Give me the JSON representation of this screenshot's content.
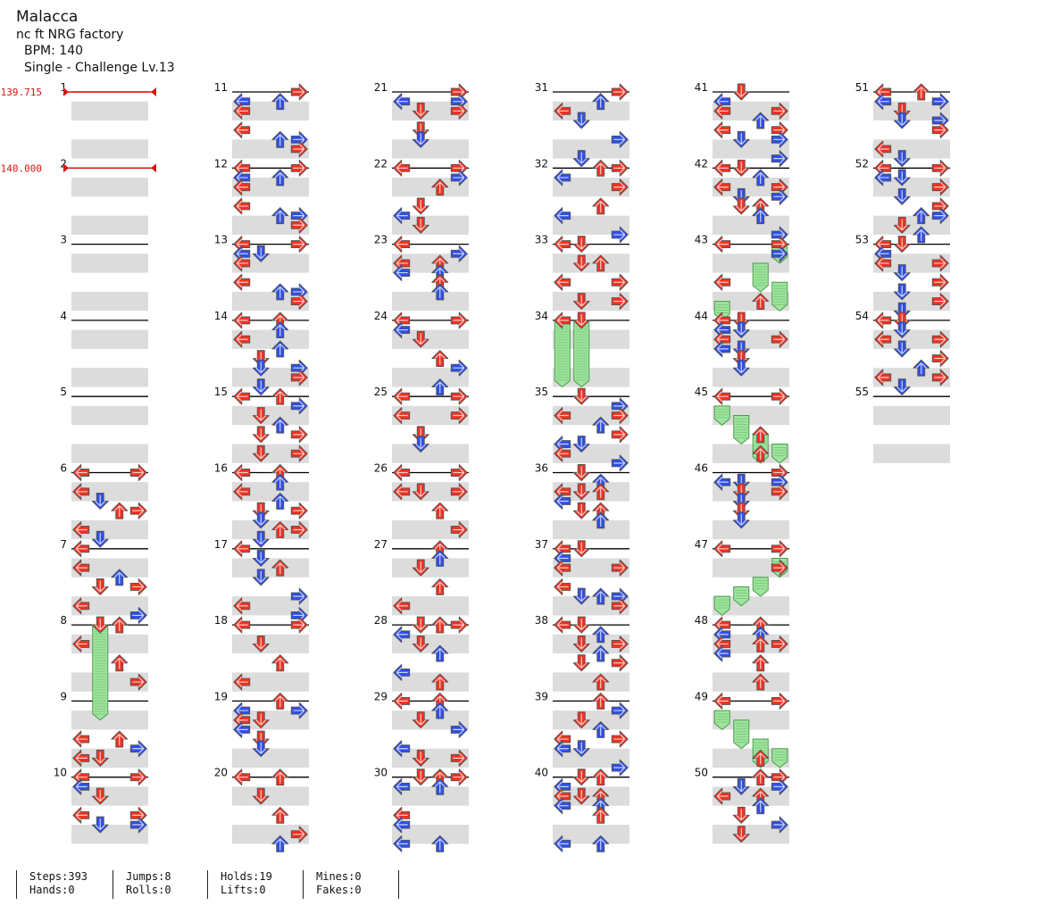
{
  "song": {
    "title": "Malacca",
    "artist": "nc ft NRG factory",
    "bpm_label": "BPM: 140",
    "difficulty_label": "Single - Challenge Lv.13"
  },
  "bpm_changes": [
    {
      "measure": 1,
      "label": "139.715"
    },
    {
      "measure": 2,
      "label": "140.000"
    }
  ],
  "colors": {
    "red": "#ee3322",
    "blue": "#2f4fe6",
    "yellow": "#f0e22a",
    "hold": "#9ee49e",
    "band": "#dcdcdc",
    "bpm_line": "#dd1111"
  },
  "stats": [
    [
      "Steps:393",
      "Hands:0"
    ],
    [
      "Jumps:8",
      "Rolls:0"
    ],
    [
      "Holds:19",
      "Lifts:0"
    ],
    [
      "Mines:0",
      "Fakes:0"
    ]
  ],
  "measure_labels": [
    "1",
    "2",
    "3",
    "4",
    "5",
    "6",
    "7",
    "8",
    "9",
    "10",
    "11",
    "12",
    "13",
    "14",
    "15",
    "16",
    "17",
    "18",
    "19",
    "20",
    "21",
    "22",
    "23",
    "24",
    "25",
    "26",
    "27",
    "28",
    "29",
    "30",
    "31",
    "32",
    "33",
    "34",
    "35",
    "36",
    "37",
    "38",
    "39",
    "40",
    "41",
    "42",
    "43",
    "44",
    "45",
    "46",
    "47",
    "48",
    "49",
    "50",
    "51",
    "52",
    "53",
    "54",
    "55"
  ],
  "notes": [
    {
      "m": 6.0,
      "c": 0
    },
    {
      "m": 6.0,
      "c": 3
    },
    {
      "m": 6.25,
      "c": 0
    },
    {
      "m": 6.375,
      "c": 1
    },
    {
      "m": 6.5,
      "c": 2
    },
    {
      "m": 6.5,
      "c": 3
    },
    {
      "m": 6.75,
      "c": 0
    },
    {
      "m": 6.875,
      "c": 1
    },
    {
      "m": 7.0,
      "c": 0
    },
    {
      "m": 7.25,
      "c": 0
    },
    {
      "m": 7.375,
      "c": 2
    },
    {
      "m": 7.5,
      "c": 1
    },
    {
      "m": 7.5,
      "c": 3
    },
    {
      "m": 7.75,
      "c": 0
    },
    {
      "m": 7.875,
      "c": 3
    },
    {
      "m": 8.0,
      "c": 1
    },
    {
      "m": 8.0,
      "c": 2
    },
    {
      "m": 8.25,
      "c": 0
    },
    {
      "m": 8.5,
      "c": 2
    },
    {
      "m": 8.75,
      "c": 3
    },
    {
      "m": 9.5,
      "c": 0
    },
    {
      "m": 9.5,
      "c": 2
    },
    {
      "m": 9.625,
      "c": 3
    },
    {
      "m": 9.75,
      "c": 0
    },
    {
      "m": 9.75,
      "c": 1
    },
    {
      "m": 10.0,
      "c": 0
    },
    {
      "m": 10.0,
      "c": 3
    },
    {
      "m": 10.125,
      "c": 0
    },
    {
      "m": 10.25,
      "c": 1
    },
    {
      "m": 10.5,
      "c": 0
    },
    {
      "m": 10.5,
      "c": 3
    },
    {
      "m": 10.625,
      "c": 1
    },
    {
      "m": 10.625,
      "c": 3
    },
    {
      "m": 11.0,
      "c": 3
    },
    {
      "m": 11.125,
      "c": 0
    },
    {
      "m": 11.125,
      "c": 2
    },
    {
      "m": 11.25,
      "c": 0
    },
    {
      "m": 11.5,
      "c": 0
    },
    {
      "m": 11.625,
      "c": 2
    },
    {
      "m": 11.625,
      "c": 3
    },
    {
      "m": 11.75,
      "c": 3
    },
    {
      "m": 12.0,
      "c": 0
    },
    {
      "m": 12.0,
      "c": 3
    },
    {
      "m": 12.125,
      "c": 0
    },
    {
      "m": 12.125,
      "c": 2
    },
    {
      "m": 12.25,
      "c": 0
    },
    {
      "m": 12.5,
      "c": 0
    },
    {
      "m": 12.625,
      "c": 2
    },
    {
      "m": 12.625,
      "c": 3
    },
    {
      "m": 12.75,
      "c": 3
    },
    {
      "m": 13.0,
      "c": 0
    },
    {
      "m": 13.0,
      "c": 3
    },
    {
      "m": 13.125,
      "c": 0
    },
    {
      "m": 13.125,
      "c": 1
    },
    {
      "m": 13.25,
      "c": 0
    },
    {
      "m": 13.5,
      "c": 0
    },
    {
      "m": 13.625,
      "c": 2
    },
    {
      "m": 13.625,
      "c": 3
    },
    {
      "m": 13.75,
      "c": 3
    },
    {
      "m": 14.0,
      "c": 0
    },
    {
      "m": 14.0,
      "c": 2
    },
    {
      "m": 14.125,
      "c": 2
    },
    {
      "m": 14.25,
      "c": 0
    },
    {
      "m": 14.375,
      "c": 2
    },
    {
      "m": 14.5,
      "c": 1
    },
    {
      "m": 14.625,
      "c": 1
    },
    {
      "m": 14.625,
      "c": 3
    },
    {
      "m": 14.75,
      "c": 3
    },
    {
      "m": 14.875,
      "c": 1
    },
    {
      "m": 15.0,
      "c": 0
    },
    {
      "m": 15.0,
      "c": 2
    },
    {
      "m": 15.125,
      "c": 3
    },
    {
      "m": 15.25,
      "c": 1
    },
    {
      "m": 15.375,
      "c": 2
    },
    {
      "m": 15.5,
      "c": 1
    },
    {
      "m": 15.5,
      "c": 3
    },
    {
      "m": 15.75,
      "c": 1
    },
    {
      "m": 15.75,
      "c": 3
    },
    {
      "m": 16.0,
      "c": 0
    },
    {
      "m": 16.0,
      "c": 2
    },
    {
      "m": 16.125,
      "c": 2
    },
    {
      "m": 16.25,
      "c": 0
    },
    {
      "m": 16.375,
      "c": 2
    },
    {
      "m": 16.5,
      "c": 1
    },
    {
      "m": 16.5,
      "c": 3
    },
    {
      "m": 16.625,
      "c": 1
    },
    {
      "m": 16.75,
      "c": 2
    },
    {
      "m": 16.75,
      "c": 3
    },
    {
      "m": 16.875,
      "c": 1
    },
    {
      "m": 17.0,
      "c": 0
    },
    {
      "m": 17.125,
      "c": 1
    },
    {
      "m": 17.25,
      "c": 2
    },
    {
      "m": 17.375,
      "c": 1
    },
    {
      "m": 17.625,
      "c": 3
    },
    {
      "m": 17.75,
      "c": 0
    },
    {
      "m": 17.875,
      "c": 3
    },
    {
      "m": 18.0,
      "c": 0
    },
    {
      "m": 18.0,
      "c": 3
    },
    {
      "m": 18.25,
      "c": 1
    },
    {
      "m": 18.5,
      "c": 2
    },
    {
      "m": 18.75,
      "c": 0
    },
    {
      "m": 19.0,
      "c": 2
    },
    {
      "m": 19.125,
      "c": 0
    },
    {
      "m": 19.125,
      "c": 3
    },
    {
      "m": 19.25,
      "c": 0
    },
    {
      "m": 19.25,
      "c": 1
    },
    {
      "m": 19.375,
      "c": 0
    },
    {
      "m": 19.5,
      "c": 1
    },
    {
      "m": 19.625,
      "c": 1
    },
    {
      "m": 20.0,
      "c": 0
    },
    {
      "m": 20.0,
      "c": 2
    },
    {
      "m": 20.25,
      "c": 1
    },
    {
      "m": 20.5,
      "c": 2
    },
    {
      "m": 20.75,
      "c": 3
    },
    {
      "m": 20.875,
      "c": 2
    },
    {
      "m": 21.0,
      "c": 3
    },
    {
      "m": 21.125,
      "c": 0
    },
    {
      "m": 21.125,
      "c": 3
    },
    {
      "m": 21.25,
      "c": 1
    },
    {
      "m": 21.25,
      "c": 3
    },
    {
      "m": 21.5,
      "c": 1
    },
    {
      "m": 21.625,
      "c": 1
    },
    {
      "m": 22.0,
      "c": 0
    },
    {
      "m": 22.0,
      "c": 3
    },
    {
      "m": 22.125,
      "c": 3
    },
    {
      "m": 22.25,
      "c": 2
    },
    {
      "m": 22.5,
      "c": 1
    },
    {
      "m": 22.625,
      "c": 0
    },
    {
      "m": 22.75,
      "c": 1
    },
    {
      "m": 23.0,
      "c": 0
    },
    {
      "m": 23.125,
      "c": 3
    },
    {
      "m": 23.25,
      "c": 0
    },
    {
      "m": 23.25,
      "c": 2
    },
    {
      "m": 23.375,
      "c": 0
    },
    {
      "m": 23.375,
      "c": 2
    },
    {
      "m": 23.5,
      "c": 2
    },
    {
      "m": 23.625,
      "c": 2
    },
    {
      "m": 24.0,
      "c": 0
    },
    {
      "m": 24.0,
      "c": 3
    },
    {
      "m": 24.125,
      "c": 0
    },
    {
      "m": 24.25,
      "c": 1
    },
    {
      "m": 24.5,
      "c": 2
    },
    {
      "m": 24.625,
      "c": 3
    },
    {
      "m": 24.875,
      "c": 2
    },
    {
      "m": 25.0,
      "c": 0
    },
    {
      "m": 25.0,
      "c": 3
    },
    {
      "m": 25.25,
      "c": 0
    },
    {
      "m": 25.25,
      "c": 3
    },
    {
      "m": 25.5,
      "c": 1
    },
    {
      "m": 25.625,
      "c": 1
    },
    {
      "m": 26.0,
      "c": 0
    },
    {
      "m": 26.0,
      "c": 3
    },
    {
      "m": 26.25,
      "c": 0
    },
    {
      "m": 26.25,
      "c": 1
    },
    {
      "m": 26.25,
      "c": 3
    },
    {
      "m": 26.5,
      "c": 2
    },
    {
      "m": 26.75,
      "c": 3
    },
    {
      "m": 27.0,
      "c": 2
    },
    {
      "m": 27.125,
      "c": 2
    },
    {
      "m": 27.25,
      "c": 1
    },
    {
      "m": 27.5,
      "c": 2
    },
    {
      "m": 27.75,
      "c": 0
    },
    {
      "m": 28.0,
      "c": 1
    },
    {
      "m": 28.0,
      "c": 2
    },
    {
      "m": 28.0,
      "c": 3
    },
    {
      "m": 28.125,
      "c": 0
    },
    {
      "m": 28.25,
      "c": 1
    },
    {
      "m": 28.375,
      "c": 2
    },
    {
      "m": 28.625,
      "c": 0
    },
    {
      "m": 28.75,
      "c": 2
    },
    {
      "m": 29.0,
      "c": 0
    },
    {
      "m": 29.0,
      "c": 2
    },
    {
      "m": 29.125,
      "c": 2
    },
    {
      "m": 29.25,
      "c": 1
    },
    {
      "m": 29.375,
      "c": 3
    },
    {
      "m": 29.625,
      "c": 0
    },
    {
      "m": 29.75,
      "c": 1
    },
    {
      "m": 29.75,
      "c": 3
    },
    {
      "m": 30.0,
      "c": 1
    },
    {
      "m": 30.0,
      "c": 2
    },
    {
      "m": 30.0,
      "c": 3
    },
    {
      "m": 30.125,
      "c": 0
    },
    {
      "m": 30.125,
      "c": 2
    },
    {
      "m": 30.5,
      "c": 0
    },
    {
      "m": 30.625,
      "c": 0
    },
    {
      "m": 30.875,
      "c": 0
    },
    {
      "m": 30.875,
      "c": 2
    },
    {
      "m": 31.0,
      "c": 3
    },
    {
      "m": 31.125,
      "c": 2
    },
    {
      "m": 31.25,
      "c": 0
    },
    {
      "m": 31.375,
      "c": 1
    },
    {
      "m": 31.625,
      "c": 3
    },
    {
      "m": 31.875,
      "c": 1
    },
    {
      "m": 32.0,
      "c": 2
    },
    {
      "m": 32.0,
      "c": 3
    },
    {
      "m": 32.125,
      "c": 0
    },
    {
      "m": 32.25,
      "c": 3
    },
    {
      "m": 32.5,
      "c": 2
    },
    {
      "m": 32.625,
      "c": 0
    },
    {
      "m": 32.875,
      "c": 3
    },
    {
      "m": 33.0,
      "c": 0
    },
    {
      "m": 33.0,
      "c": 1
    },
    {
      "m": 33.25,
      "c": 1
    },
    {
      "m": 33.25,
      "c": 2
    },
    {
      "m": 33.5,
      "c": 0
    },
    {
      "m": 33.5,
      "c": 3
    },
    {
      "m": 33.75,
      "c": 1
    },
    {
      "m": 33.75,
      "c": 3
    },
    {
      "m": 34.0,
      "c": 0
    },
    {
      "m": 34.0,
      "c": 1
    },
    {
      "m": 35.0,
      "c": 1
    },
    {
      "m": 35.125,
      "c": 3
    },
    {
      "m": 35.25,
      "c": 0
    },
    {
      "m": 35.25,
      "c": 3
    },
    {
      "m": 35.375,
      "c": 2
    },
    {
      "m": 35.5,
      "c": 3
    },
    {
      "m": 35.625,
      "c": 0
    },
    {
      "m": 35.625,
      "c": 1
    },
    {
      "m": 35.75,
      "c": 0
    },
    {
      "m": 35.875,
      "c": 3
    },
    {
      "m": 36.0,
      "c": 1
    },
    {
      "m": 36.125,
      "c": 2
    },
    {
      "m": 36.25,
      "c": 0
    },
    {
      "m": 36.25,
      "c": 1
    },
    {
      "m": 36.25,
      "c": 2
    },
    {
      "m": 36.375,
      "c": 0
    },
    {
      "m": 36.5,
      "c": 1
    },
    {
      "m": 36.5,
      "c": 2
    },
    {
      "m": 36.625,
      "c": 2
    },
    {
      "m": 37.0,
      "c": 0
    },
    {
      "m": 37.0,
      "c": 1
    },
    {
      "m": 37.125,
      "c": 0
    },
    {
      "m": 37.25,
      "c": 0
    },
    {
      "m": 37.25,
      "c": 3
    },
    {
      "m": 37.5,
      "c": 0
    },
    {
      "m": 37.625,
      "c": 1
    },
    {
      "m": 37.625,
      "c": 2
    },
    {
      "m": 37.625,
      "c": 3
    },
    {
      "m": 37.75,
      "c": 3
    },
    {
      "m": 38.0,
      "c": 0
    },
    {
      "m": 38.0,
      "c": 1
    },
    {
      "m": 38.125,
      "c": 2
    },
    {
      "m": 38.25,
      "c": 1
    },
    {
      "m": 38.25,
      "c": 3
    },
    {
      "m": 38.375,
      "c": 2
    },
    {
      "m": 38.5,
      "c": 1
    },
    {
      "m": 38.5,
      "c": 3
    },
    {
      "m": 38.75,
      "c": 2
    },
    {
      "m": 39.0,
      "c": 2
    },
    {
      "m": 39.125,
      "c": 3
    },
    {
      "m": 39.25,
      "c": 1
    },
    {
      "m": 39.375,
      "c": 2
    },
    {
      "m": 39.5,
      "c": 0
    },
    {
      "m": 39.5,
      "c": 3
    },
    {
      "m": 39.625,
      "c": 0
    },
    {
      "m": 39.625,
      "c": 1
    },
    {
      "m": 39.875,
      "c": 3
    },
    {
      "m": 40.0,
      "c": 1
    },
    {
      "m": 40.0,
      "c": 2
    },
    {
      "m": 40.125,
      "c": 0
    },
    {
      "m": 40.25,
      "c": 0
    },
    {
      "m": 40.25,
      "c": 1
    },
    {
      "m": 40.25,
      "c": 2
    },
    {
      "m": 40.375,
      "c": 0
    },
    {
      "m": 40.375,
      "c": 2
    },
    {
      "m": 40.5,
      "c": 2
    },
    {
      "m": 40.875,
      "c": 0
    },
    {
      "m": 40.875,
      "c": 2
    },
    {
      "m": 41.0,
      "c": 1
    },
    {
      "m": 41.125,
      "c": 0
    },
    {
      "m": 41.25,
      "c": 0
    },
    {
      "m": 41.25,
      "c": 3
    },
    {
      "m": 41.375,
      "c": 2
    },
    {
      "m": 41.5,
      "c": 0
    },
    {
      "m": 41.5,
      "c": 3
    },
    {
      "m": 41.625,
      "c": 1
    },
    {
      "m": 41.625,
      "c": 3
    },
    {
      "m": 41.875,
      "c": 3
    },
    {
      "m": 42.0,
      "c": 0
    },
    {
      "m": 42.0,
      "c": 1
    },
    {
      "m": 42.125,
      "c": 2
    },
    {
      "m": 42.25,
      "c": 0
    },
    {
      "m": 42.25,
      "c": 3
    },
    {
      "m": 42.375,
      "c": 1
    },
    {
      "m": 42.375,
      "c": 3
    },
    {
      "m": 42.5,
      "c": 1
    },
    {
      "m": 42.5,
      "c": 2
    },
    {
      "m": 42.625,
      "c": 2
    },
    {
      "m": 42.875,
      "c": 3
    },
    {
      "m": 43.0,
      "c": 0
    },
    {
      "m": 43.0,
      "c": 3
    },
    {
      "m": 43.125,
      "c": 3
    },
    {
      "m": 43.5,
      "c": 0
    },
    {
      "m": 43.75,
      "c": 2
    },
    {
      "m": 44.0,
      "c": 0
    },
    {
      "m": 44.0,
      "c": 1
    },
    {
      "m": 44.125,
      "c": 0
    },
    {
      "m": 44.125,
      "c": 1
    },
    {
      "m": 44.25,
      "c": 0
    },
    {
      "m": 44.25,
      "c": 3
    },
    {
      "m": 44.375,
      "c": 0
    },
    {
      "m": 44.375,
      "c": 1
    },
    {
      "m": 44.5,
      "c": 1
    },
    {
      "m": 44.625,
      "c": 1
    },
    {
      "m": 45.0,
      "c": 0
    },
    {
      "m": 45.0,
      "c": 3
    },
    {
      "m": 45.5,
      "c": 2
    },
    {
      "m": 45.75,
      "c": 2
    },
    {
      "m": 46.0,
      "c": 3
    },
    {
      "m": 46.125,
      "c": 0
    },
    {
      "m": 46.125,
      "c": 1
    },
    {
      "m": 46.125,
      "c": 3
    },
    {
      "m": 46.25,
      "c": 1
    },
    {
      "m": 46.25,
      "c": 3
    },
    {
      "m": 46.375,
      "c": 1
    },
    {
      "m": 46.5,
      "c": 1
    },
    {
      "m": 46.625,
      "c": 1
    },
    {
      "m": 47.0,
      "c": 0
    },
    {
      "m": 47.0,
      "c": 3
    },
    {
      "m": 47.25,
      "c": 3
    },
    {
      "m": 48.0,
      "c": 0
    },
    {
      "m": 48.0,
      "c": 2
    },
    {
      "m": 48.125,
      "c": 0
    },
    {
      "m": 48.125,
      "c": 2
    },
    {
      "m": 48.25,
      "c": 0
    },
    {
      "m": 48.25,
      "c": 2
    },
    {
      "m": 48.25,
      "c": 3
    },
    {
      "m": 48.375,
      "c": 0
    },
    {
      "m": 48.5,
      "c": 2
    },
    {
      "m": 48.75,
      "c": 2
    },
    {
      "m": 49.0,
      "c": 0
    },
    {
      "m": 49.0,
      "c": 3
    },
    {
      "m": 49.75,
      "c": 2
    },
    {
      "m": 50.0,
      "c": 2
    },
    {
      "m": 50.0,
      "c": 3
    },
    {
      "m": 50.125,
      "c": 1
    },
    {
      "m": 50.125,
      "c": 3
    },
    {
      "m": 50.25,
      "c": 0
    },
    {
      "m": 50.25,
      "c": 2
    },
    {
      "m": 50.375,
      "c": 2
    },
    {
      "m": 50.5,
      "c": 1
    },
    {
      "m": 50.625,
      "c": 3
    },
    {
      "m": 50.75,
      "c": 1
    },
    {
      "m": 51.0,
      "c": 0
    },
    {
      "m": 51.0,
      "c": 2
    },
    {
      "m": 51.125,
      "c": 0
    },
    {
      "m": 51.125,
      "c": 3
    },
    {
      "m": 51.25,
      "c": 1
    },
    {
      "m": 51.375,
      "c": 1
    },
    {
      "m": 51.375,
      "c": 3
    },
    {
      "m": 51.5,
      "c": 3
    },
    {
      "m": 51.75,
      "c": 0
    },
    {
      "m": 51.875,
      "c": 1
    },
    {
      "m": 52.0,
      "c": 0
    },
    {
      "m": 52.0,
      "c": 3
    },
    {
      "m": 52.125,
      "c": 0
    },
    {
      "m": 52.125,
      "c": 1
    },
    {
      "m": 52.25,
      "c": 3
    },
    {
      "m": 52.375,
      "c": 1
    },
    {
      "m": 52.5,
      "c": 3
    },
    {
      "m": 52.625,
      "c": 2
    },
    {
      "m": 52.625,
      "c": 3
    },
    {
      "m": 52.75,
      "c": 1
    },
    {
      "m": 52.875,
      "c": 2
    },
    {
      "m": 53.0,
      "c": 0
    },
    {
      "m": 53.0,
      "c": 1
    },
    {
      "m": 53.125,
      "c": 0
    },
    {
      "m": 53.25,
      "c": 0
    },
    {
      "m": 53.25,
      "c": 3
    },
    {
      "m": 53.375,
      "c": 1
    },
    {
      "m": 53.5,
      "c": 3
    },
    {
      "m": 53.625,
      "c": 1
    },
    {
      "m": 53.75,
      "c": 3
    },
    {
      "m": 53.875,
      "c": 1
    },
    {
      "m": 54.0,
      "c": 0
    },
    {
      "m": 54.0,
      "c": 1
    },
    {
      "m": 54.125,
      "c": 1
    },
    {
      "m": 54.25,
      "c": 0
    },
    {
      "m": 54.25,
      "c": 3
    },
    {
      "m": 54.375,
      "c": 1
    },
    {
      "m": 54.5,
      "c": 3
    },
    {
      "m": 54.625,
      "c": 2
    },
    {
      "m": 54.75,
      "c": 0
    },
    {
      "m": 54.75,
      "c": 3
    },
    {
      "m": 54.875,
      "c": 1
    }
  ],
  "holds": [
    {
      "m": 8.0,
      "c": 1,
      "len": 1.25
    },
    {
      "m": 34.0,
      "c": 0,
      "len": 0.875
    },
    {
      "m": 34.0,
      "c": 1,
      "len": 0.875
    },
    {
      "m": 43.0,
      "c": 3,
      "len": 0.25
    },
    {
      "m": 43.25,
      "c": 2,
      "len": 0.375
    },
    {
      "m": 43.5,
      "c": 3,
      "len": 0.375
    },
    {
      "m": 43.75,
      "c": 0,
      "len": 0.25
    },
    {
      "m": 45.125,
      "c": 0,
      "len": 0.25
    },
    {
      "m": 45.25,
      "c": 1,
      "len": 0.375
    },
    {
      "m": 45.5,
      "c": 2,
      "len": 0.375
    },
    {
      "m": 45.625,
      "c": 3,
      "len": 0.25
    },
    {
      "m": 47.125,
      "c": 3,
      "len": 0.25
    },
    {
      "m": 47.375,
      "c": 2,
      "len": 0.25
    },
    {
      "m": 47.5,
      "c": 1,
      "len": 0.25
    },
    {
      "m": 47.625,
      "c": 0,
      "len": 0.25
    },
    {
      "m": 49.125,
      "c": 0,
      "len": 0.25
    },
    {
      "m": 49.25,
      "c": 1,
      "len": 0.375
    },
    {
      "m": 49.5,
      "c": 2,
      "len": 0.375
    },
    {
      "m": 49.625,
      "c": 3,
      "len": 0.25
    }
  ]
}
